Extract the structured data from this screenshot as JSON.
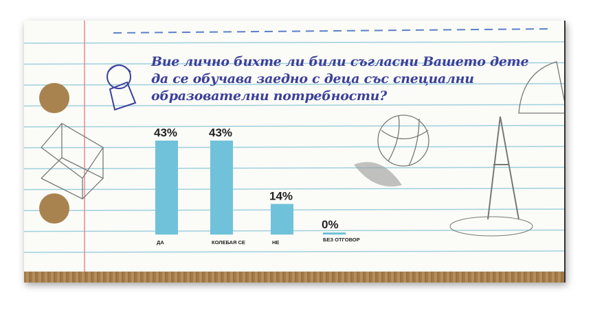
{
  "title": "Вие лично бихте ли били съгласни Вашето дете да се обучава заедно с деца със специални образователни потребности?",
  "chart_data": {
    "type": "bar",
    "title": "Вие лично бихте ли били съгласни Вашето дете да се обучава заедно с деца със специални образователни потребности?",
    "categories": [
      "ДА",
      "КОЛЕБАЯ СЕ",
      "НЕ",
      "БЕЗ ОТГОВОР"
    ],
    "values": [
      43,
      43,
      14,
      0
    ],
    "labels": [
      "43%",
      "43%",
      "14%",
      "0%"
    ],
    "unit": "%",
    "ylim": [
      0,
      43
    ],
    "grid": false,
    "bar_color": "#6fc2d9"
  },
  "colors": {
    "title": "#3b3f9a",
    "lines": "#9fd0dc",
    "margin": "#e58a8a",
    "cork": "#a27a4a"
  },
  "icons": [
    "boy-with-pencil-icon",
    "cube-sketch-icon",
    "basketball-sketch-icon",
    "protractor-sketch-icon",
    "compass-sketch-icon"
  ]
}
